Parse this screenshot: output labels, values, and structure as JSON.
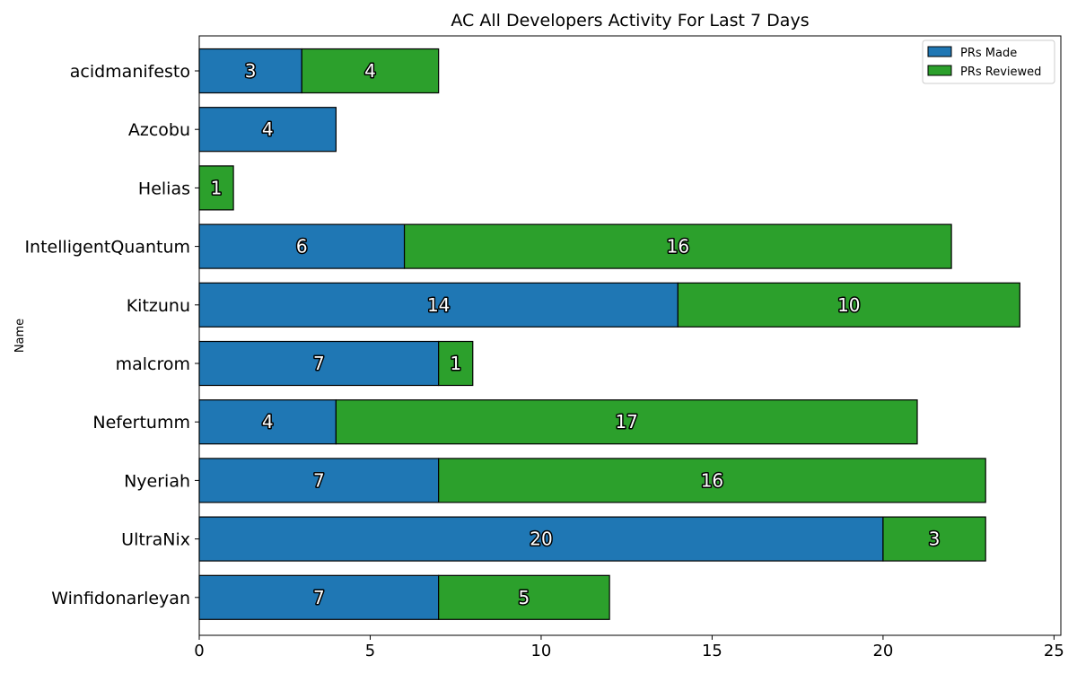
{
  "chart_data": {
    "type": "bar",
    "orientation": "horizontal",
    "stacked": true,
    "title": "AC All Developers Activity For Last 7 Days",
    "xlabel": "",
    "ylabel": "Name",
    "categories": [
      "acidmanifesto",
      "Azcobu",
      "Helias",
      "IntelligentQuantum",
      "Kitzunu",
      "malcrom",
      "Nefertumm",
      "Nyeriah",
      "UltraNix",
      "Winfidonarleyan"
    ],
    "series": [
      {
        "name": "PRs Made",
        "color": "#1f77b4",
        "values": [
          3,
          4,
          0,
          6,
          14,
          7,
          4,
          7,
          20,
          7
        ]
      },
      {
        "name": "PRs Reviewed",
        "color": "#2ca02c",
        "values": [
          4,
          0,
          1,
          16,
          10,
          1,
          17,
          16,
          3,
          5
        ]
      }
    ],
    "xlim": [
      0,
      25.2
    ],
    "xticks": [
      0,
      5,
      10,
      15,
      20,
      25
    ],
    "grid": false,
    "legend_position": "top-right",
    "bar_labels": true
  }
}
